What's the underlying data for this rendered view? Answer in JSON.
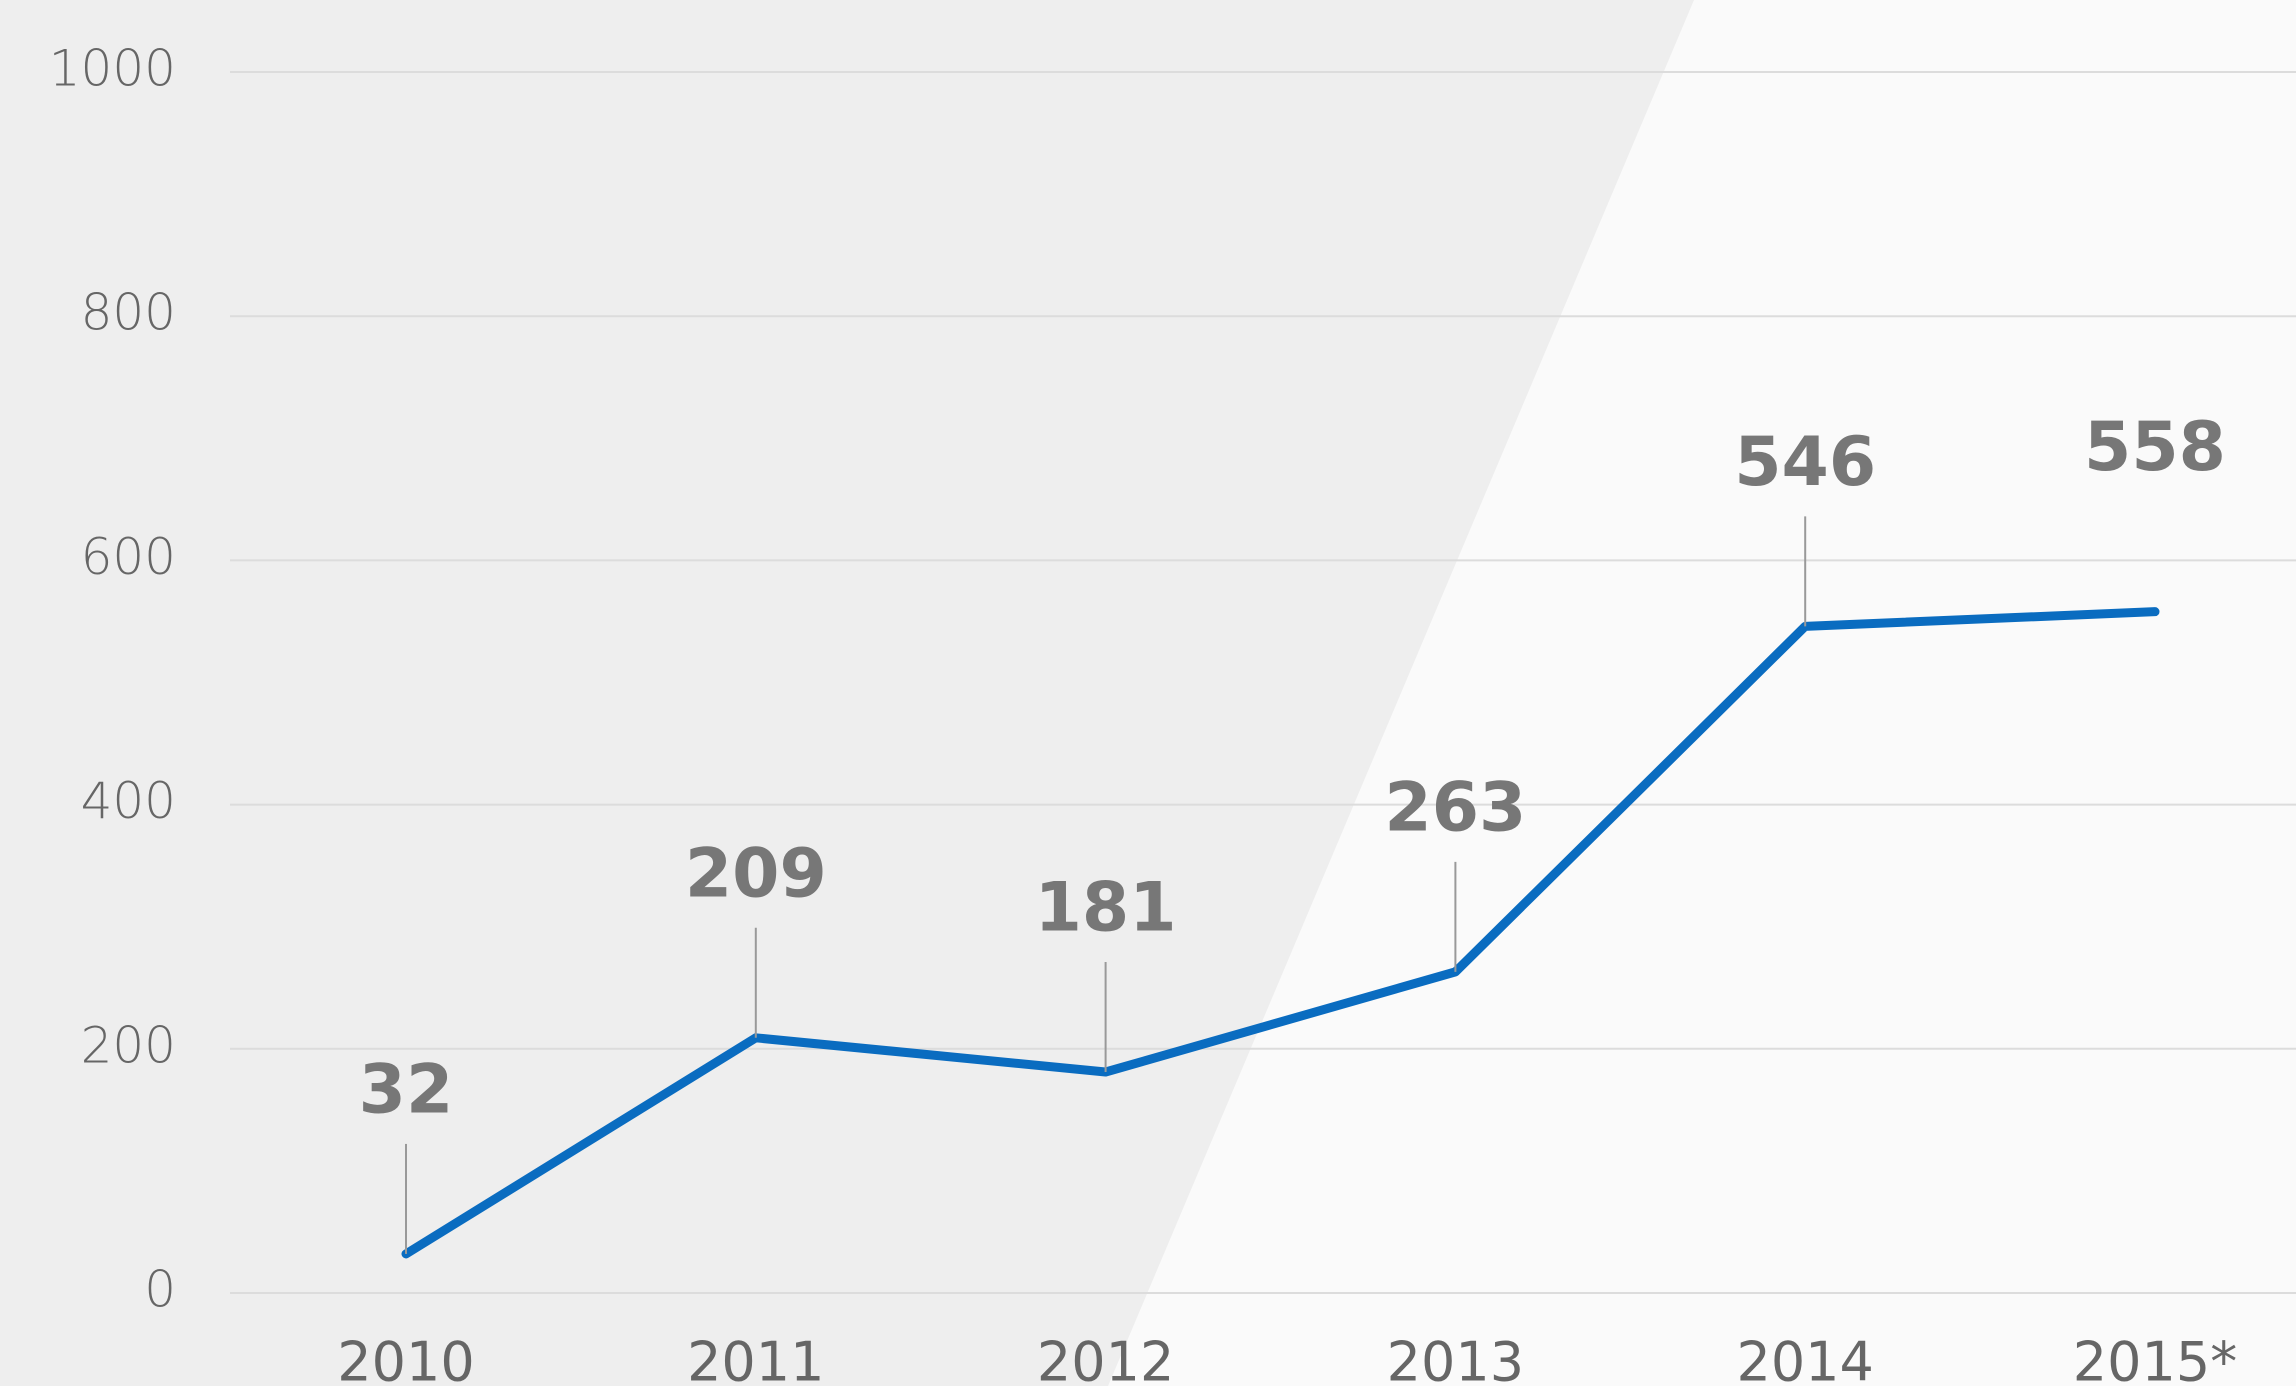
{
  "chart_data": {
    "type": "line",
    "categories": [
      "2010",
      "2011",
      "2012",
      "2013",
      "2014",
      "2015*"
    ],
    "series": [
      {
        "name": null,
        "color": "#0a6cc0",
        "values": [
          32,
          209,
          181,
          263,
          546,
          558
        ]
      }
    ],
    "ylim": [
      0,
      1000
    ],
    "yticks": [
      0,
      200,
      400,
      600,
      800,
      1000
    ],
    "grid": true
  }
}
